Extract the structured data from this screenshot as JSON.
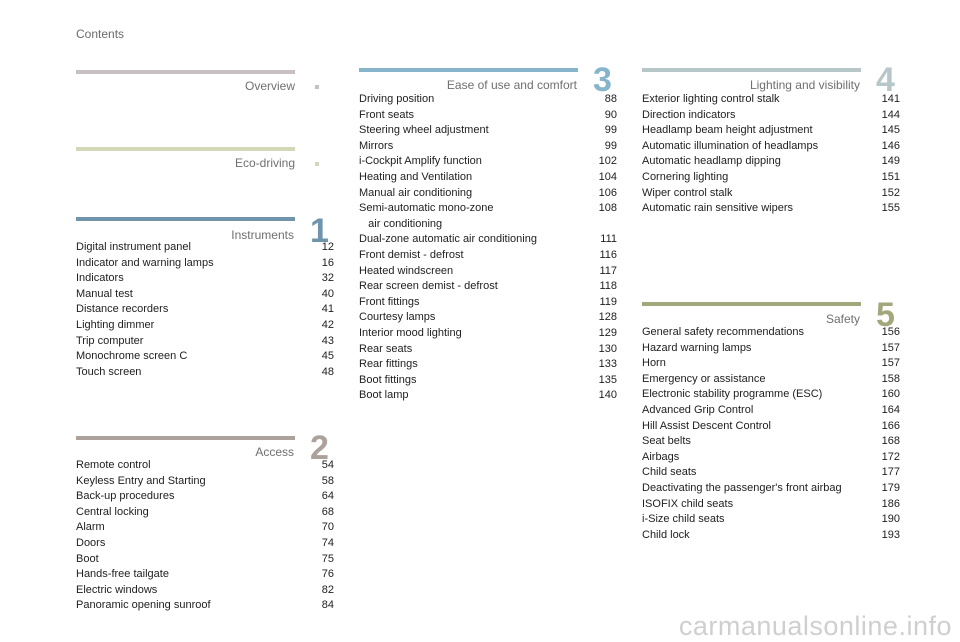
{
  "page": {
    "title": "Contents"
  },
  "sections": [
    {
      "id": "overview",
      "title": "Overview",
      "number": "",
      "color": "#c8bfc4",
      "entries": []
    },
    {
      "id": "eco-driving",
      "title": "Eco-driving",
      "number": "",
      "color": "#d3d8b8",
      "entries": []
    },
    {
      "id": "instruments",
      "title": "Instruments",
      "number": "1",
      "color": "#6f94ab",
      "entries": [
        {
          "title": "Digital instrument panel",
          "page": "12"
        },
        {
          "title": "Indicator and warning lamps",
          "page": "16"
        },
        {
          "title": "Indicators",
          "page": "32"
        },
        {
          "title": "Manual test",
          "page": "40"
        },
        {
          "title": "Distance recorders",
          "page": "41"
        },
        {
          "title": "Lighting dimmer",
          "page": "42"
        },
        {
          "title": "Trip computer",
          "page": "43"
        },
        {
          "title": "Monochrome screen C",
          "page": "45"
        },
        {
          "title": "Touch screen",
          "page": "48"
        }
      ]
    },
    {
      "id": "access",
      "title": "Access",
      "number": "2",
      "color": "#ada19c",
      "entries": [
        {
          "title": "Remote control",
          "page": "54"
        },
        {
          "title": "Keyless Entry and Starting",
          "page": "58"
        },
        {
          "title": "Back-up procedures",
          "page": "64"
        },
        {
          "title": "Central locking",
          "page": "68"
        },
        {
          "title": "Alarm",
          "page": "70"
        },
        {
          "title": "Doors",
          "page": "74"
        },
        {
          "title": "Boot",
          "page": "75"
        },
        {
          "title": "Hands-free tailgate",
          "page": "76"
        },
        {
          "title": "Electric windows",
          "page": "82"
        },
        {
          "title": "Panoramic opening sunroof",
          "page": "84"
        }
      ]
    },
    {
      "id": "ease-of-use",
      "title": "Ease of use and comfort",
      "number": "3",
      "color": "#86b4cb",
      "entries": [
        {
          "title": "Driving position",
          "page": "88"
        },
        {
          "title": "Front seats",
          "page": "90"
        },
        {
          "title": "Steering wheel adjustment",
          "page": "99"
        },
        {
          "title": "Mirrors",
          "page": "99"
        },
        {
          "title": "i-Cockpit Amplify function",
          "page": "102"
        },
        {
          "title": "Heating and Ventilation",
          "page": "104"
        },
        {
          "title": "Manual air conditioning",
          "page": "106"
        },
        {
          "title": "Semi-automatic mono-zone\n   air conditioning",
          "page": "108"
        },
        {
          "title": "Dual-zone automatic air conditioning",
          "page": "111"
        },
        {
          "title": "Front demist - defrost",
          "page": "116"
        },
        {
          "title": "Heated windscreen",
          "page": "117"
        },
        {
          "title": "Rear screen demist - defrost",
          "page": "118"
        },
        {
          "title": "Front fittings",
          "page": "119"
        },
        {
          "title": "Courtesy lamps",
          "page": "128"
        },
        {
          "title": "Interior mood lighting",
          "page": "129"
        },
        {
          "title": "Rear seats",
          "page": "130"
        },
        {
          "title": "Rear fittings",
          "page": "133"
        },
        {
          "title": "Boot fittings",
          "page": "135"
        },
        {
          "title": "Boot lamp",
          "page": "140"
        }
      ]
    },
    {
      "id": "lighting",
      "title": "Lighting and visibility",
      "number": "4",
      "color": "#b7c7c9",
      "entries": [
        {
          "title": "Exterior lighting control stalk",
          "page": "141"
        },
        {
          "title": "Direction indicators",
          "page": "144"
        },
        {
          "title": "Headlamp beam height adjustment",
          "page": "145"
        },
        {
          "title": "Automatic illumination of headlamps",
          "page": "146"
        },
        {
          "title": "Automatic headlamp dipping",
          "page": "149"
        },
        {
          "title": "Cornering lighting",
          "page": "151"
        },
        {
          "title": "Wiper control stalk",
          "page": "152"
        },
        {
          "title": "Automatic rain sensitive wipers",
          "page": "155"
        }
      ]
    },
    {
      "id": "safety",
      "title": "Safety",
      "number": "5",
      "color": "#a3a77c",
      "entries": [
        {
          "title": "General safety recommendations",
          "page": "156"
        },
        {
          "title": "Hazard warning lamps",
          "page": "157"
        },
        {
          "title": "Horn",
          "page": "157"
        },
        {
          "title": "Emergency or assistance",
          "page": "158"
        },
        {
          "title": "Electronic stability programme (ESC)",
          "page": "160"
        },
        {
          "title": "Advanced Grip Control",
          "page": "164"
        },
        {
          "title": "Hill Assist Descent Control",
          "page": "166"
        },
        {
          "title": "Seat belts",
          "page": "168"
        },
        {
          "title": "Airbags",
          "page": "172"
        },
        {
          "title": "Child seats",
          "page": "177"
        },
        {
          "title": "Deactivating the passenger's front airbag",
          "page": "179"
        },
        {
          "title": "ISOFIX child seats",
          "page": "186"
        },
        {
          "title": "i-Size child seats",
          "page": "190"
        },
        {
          "title": "Child lock",
          "page": "193"
        }
      ]
    }
  ],
  "watermark": "carmanualsonline.info"
}
